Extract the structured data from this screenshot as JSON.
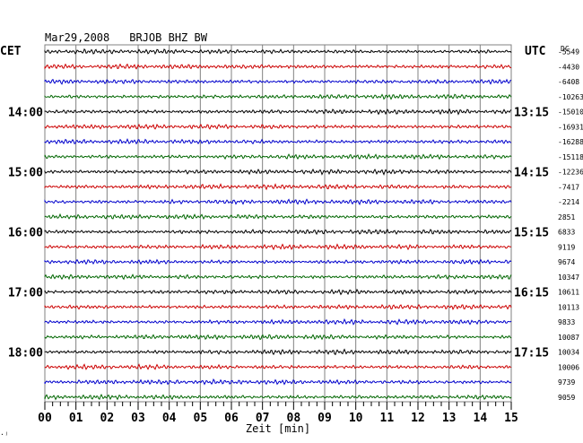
{
  "header": {
    "date": "Mar29,2008",
    "station": "BRJOB BHZ BW"
  },
  "labels": {
    "left_zone": "CET",
    "right_zone": "UTC",
    "dc": "DC",
    "xlabel": "Zeit [min]",
    "corner_mark": "·ʲ"
  },
  "colors": {
    "trace_cycle": [
      "#000000",
      "#cc0000",
      "#0000cc",
      "#006600"
    ],
    "grid": "#808080"
  },
  "chart_data": {
    "type": "line",
    "title": "Mar29,2008   BRJOB BHZ BW",
    "xlabel": "Zeit [min]",
    "xlim": [
      0,
      15
    ],
    "x_ticks": [
      "00",
      "01",
      "02",
      "03",
      "04",
      "05",
      "06",
      "07",
      "08",
      "09",
      "10",
      "11",
      "12",
      "13",
      "14",
      "15"
    ],
    "grid": true,
    "traces": 24,
    "cet_hour_labels": [
      {
        "label": "14:00",
        "trace": 4
      },
      {
        "label": "15:00",
        "trace": 8
      },
      {
        "label": "16:00",
        "trace": 12
      },
      {
        "label": "17:00",
        "trace": 16
      },
      {
        "label": "18:00",
        "trace": 20
      }
    ],
    "utc_labels": [
      {
        "label": "13:15",
        "trace": 4
      },
      {
        "label": "14:15",
        "trace": 8
      },
      {
        "label": "15:15",
        "trace": 12
      },
      {
        "label": "16:15",
        "trace": 16
      },
      {
        "label": "17:15",
        "trace": 20
      }
    ],
    "dc_offsets": [
      -5549,
      -4430,
      -6408,
      -10263,
      -15010,
      -16931,
      -16288,
      -15118,
      -12236,
      -7417,
      -2214,
      2851,
      6833,
      9119,
      9674,
      10347,
      10611,
      10113,
      9833,
      10087,
      10034,
      10006,
      9739,
      9059
    ]
  }
}
